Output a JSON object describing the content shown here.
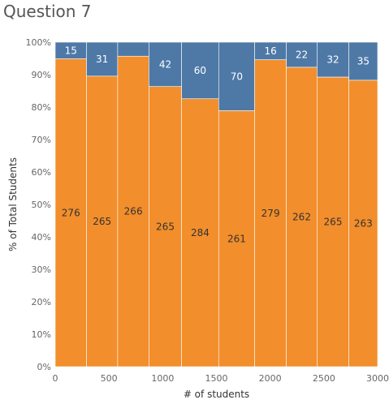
{
  "chart_data": {
    "type": "bar",
    "stacked": true,
    "normalized": true,
    "title": "Question 7",
    "xlabel": "# of students",
    "ylabel": "% of Total Students",
    "x_ticks": [
      0,
      500,
      1000,
      1500,
      2000,
      2500,
      3000
    ],
    "y_ticks": [
      "0%",
      "10%",
      "20%",
      "30%",
      "40%",
      "50%",
      "60%",
      "70%",
      "80%",
      "90%",
      "100%"
    ],
    "xlim": [
      0,
      3000
    ],
    "ylim": [
      0,
      100
    ],
    "bar_x_ranges": [
      [
        0,
        291
      ],
      [
        291,
        581
      ],
      [
        581,
        872
      ],
      [
        872,
        1176
      ],
      [
        1176,
        1521
      ],
      [
        1521,
        1856
      ],
      [
        1856,
        2151
      ],
      [
        2151,
        2436
      ],
      [
        2436,
        2733
      ],
      [
        2733,
        3031
      ]
    ],
    "series": [
      {
        "color": "#f28e2b",
        "values": [
          276,
          265,
          266,
          265,
          284,
          261,
          279,
          262,
          265,
          263
        ]
      },
      {
        "color": "#4e79a7",
        "values": [
          15,
          31,
          12,
          42,
          60,
          70,
          16,
          22,
          32,
          35
        ]
      }
    ],
    "bar_labels_top": [
      "15",
      "31",
      "",
      "42",
      "60",
      "70",
      "16",
      "22",
      "32",
      "35"
    ],
    "bar_labels_bottom": [
      "276",
      "265",
      "266",
      "265",
      "284",
      "261",
      "279",
      "262",
      "265",
      "263"
    ],
    "grid": true
  }
}
